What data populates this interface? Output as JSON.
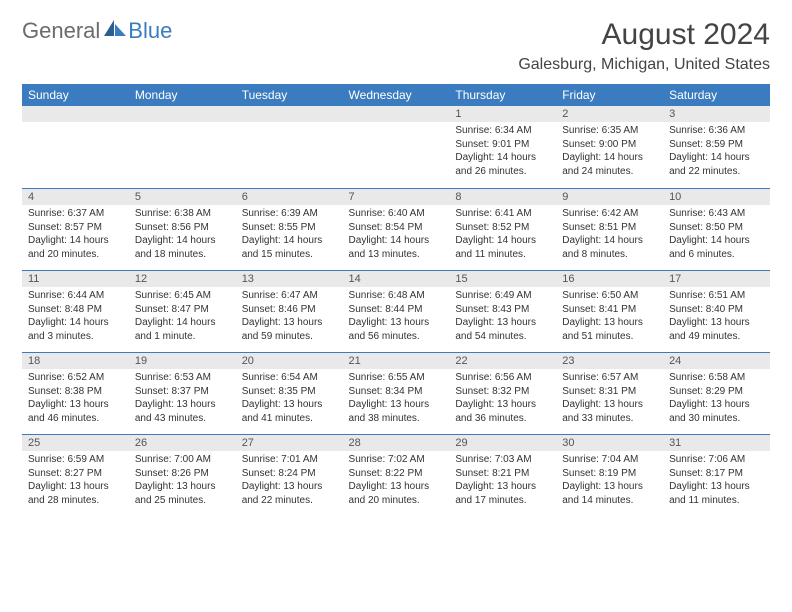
{
  "logo": {
    "general": "General",
    "blue": "Blue"
  },
  "header": {
    "month_title": "August 2024",
    "location": "Galesburg, Michigan, United States"
  },
  "colors": {
    "header_bg": "#3b7bbf",
    "header_text": "#ffffff",
    "daynum_bg": "#e9e9e9",
    "row_divider": "#3b7bbf",
    "body_text": "#333333",
    "logo_gray": "#6b6b6b",
    "logo_blue": "#3b7bbf"
  },
  "weekdays": [
    "Sunday",
    "Monday",
    "Tuesday",
    "Wednesday",
    "Thursday",
    "Friday",
    "Saturday"
  ],
  "weeks": [
    [
      null,
      null,
      null,
      null,
      {
        "n": "1",
        "sr": "Sunrise: 6:34 AM",
        "ss": "Sunset: 9:01 PM",
        "dl": "Daylight: 14 hours and 26 minutes."
      },
      {
        "n": "2",
        "sr": "Sunrise: 6:35 AM",
        "ss": "Sunset: 9:00 PM",
        "dl": "Daylight: 14 hours and 24 minutes."
      },
      {
        "n": "3",
        "sr": "Sunrise: 6:36 AM",
        "ss": "Sunset: 8:59 PM",
        "dl": "Daylight: 14 hours and 22 minutes."
      }
    ],
    [
      {
        "n": "4",
        "sr": "Sunrise: 6:37 AM",
        "ss": "Sunset: 8:57 PM",
        "dl": "Daylight: 14 hours and 20 minutes."
      },
      {
        "n": "5",
        "sr": "Sunrise: 6:38 AM",
        "ss": "Sunset: 8:56 PM",
        "dl": "Daylight: 14 hours and 18 minutes."
      },
      {
        "n": "6",
        "sr": "Sunrise: 6:39 AM",
        "ss": "Sunset: 8:55 PM",
        "dl": "Daylight: 14 hours and 15 minutes."
      },
      {
        "n": "7",
        "sr": "Sunrise: 6:40 AM",
        "ss": "Sunset: 8:54 PM",
        "dl": "Daylight: 14 hours and 13 minutes."
      },
      {
        "n": "8",
        "sr": "Sunrise: 6:41 AM",
        "ss": "Sunset: 8:52 PM",
        "dl": "Daylight: 14 hours and 11 minutes."
      },
      {
        "n": "9",
        "sr": "Sunrise: 6:42 AM",
        "ss": "Sunset: 8:51 PM",
        "dl": "Daylight: 14 hours and 8 minutes."
      },
      {
        "n": "10",
        "sr": "Sunrise: 6:43 AM",
        "ss": "Sunset: 8:50 PM",
        "dl": "Daylight: 14 hours and 6 minutes."
      }
    ],
    [
      {
        "n": "11",
        "sr": "Sunrise: 6:44 AM",
        "ss": "Sunset: 8:48 PM",
        "dl": "Daylight: 14 hours and 3 minutes."
      },
      {
        "n": "12",
        "sr": "Sunrise: 6:45 AM",
        "ss": "Sunset: 8:47 PM",
        "dl": "Daylight: 14 hours and 1 minute."
      },
      {
        "n": "13",
        "sr": "Sunrise: 6:47 AM",
        "ss": "Sunset: 8:46 PM",
        "dl": "Daylight: 13 hours and 59 minutes."
      },
      {
        "n": "14",
        "sr": "Sunrise: 6:48 AM",
        "ss": "Sunset: 8:44 PM",
        "dl": "Daylight: 13 hours and 56 minutes."
      },
      {
        "n": "15",
        "sr": "Sunrise: 6:49 AM",
        "ss": "Sunset: 8:43 PM",
        "dl": "Daylight: 13 hours and 54 minutes."
      },
      {
        "n": "16",
        "sr": "Sunrise: 6:50 AM",
        "ss": "Sunset: 8:41 PM",
        "dl": "Daylight: 13 hours and 51 minutes."
      },
      {
        "n": "17",
        "sr": "Sunrise: 6:51 AM",
        "ss": "Sunset: 8:40 PM",
        "dl": "Daylight: 13 hours and 49 minutes."
      }
    ],
    [
      {
        "n": "18",
        "sr": "Sunrise: 6:52 AM",
        "ss": "Sunset: 8:38 PM",
        "dl": "Daylight: 13 hours and 46 minutes."
      },
      {
        "n": "19",
        "sr": "Sunrise: 6:53 AM",
        "ss": "Sunset: 8:37 PM",
        "dl": "Daylight: 13 hours and 43 minutes."
      },
      {
        "n": "20",
        "sr": "Sunrise: 6:54 AM",
        "ss": "Sunset: 8:35 PM",
        "dl": "Daylight: 13 hours and 41 minutes."
      },
      {
        "n": "21",
        "sr": "Sunrise: 6:55 AM",
        "ss": "Sunset: 8:34 PM",
        "dl": "Daylight: 13 hours and 38 minutes."
      },
      {
        "n": "22",
        "sr": "Sunrise: 6:56 AM",
        "ss": "Sunset: 8:32 PM",
        "dl": "Daylight: 13 hours and 36 minutes."
      },
      {
        "n": "23",
        "sr": "Sunrise: 6:57 AM",
        "ss": "Sunset: 8:31 PM",
        "dl": "Daylight: 13 hours and 33 minutes."
      },
      {
        "n": "24",
        "sr": "Sunrise: 6:58 AM",
        "ss": "Sunset: 8:29 PM",
        "dl": "Daylight: 13 hours and 30 minutes."
      }
    ],
    [
      {
        "n": "25",
        "sr": "Sunrise: 6:59 AM",
        "ss": "Sunset: 8:27 PM",
        "dl": "Daylight: 13 hours and 28 minutes."
      },
      {
        "n": "26",
        "sr": "Sunrise: 7:00 AM",
        "ss": "Sunset: 8:26 PM",
        "dl": "Daylight: 13 hours and 25 minutes."
      },
      {
        "n": "27",
        "sr": "Sunrise: 7:01 AM",
        "ss": "Sunset: 8:24 PM",
        "dl": "Daylight: 13 hours and 22 minutes."
      },
      {
        "n": "28",
        "sr": "Sunrise: 7:02 AM",
        "ss": "Sunset: 8:22 PM",
        "dl": "Daylight: 13 hours and 20 minutes."
      },
      {
        "n": "29",
        "sr": "Sunrise: 7:03 AM",
        "ss": "Sunset: 8:21 PM",
        "dl": "Daylight: 13 hours and 17 minutes."
      },
      {
        "n": "30",
        "sr": "Sunrise: 7:04 AM",
        "ss": "Sunset: 8:19 PM",
        "dl": "Daylight: 13 hours and 14 minutes."
      },
      {
        "n": "31",
        "sr": "Sunrise: 7:06 AM",
        "ss": "Sunset: 8:17 PM",
        "dl": "Daylight: 13 hours and 11 minutes."
      }
    ]
  ]
}
